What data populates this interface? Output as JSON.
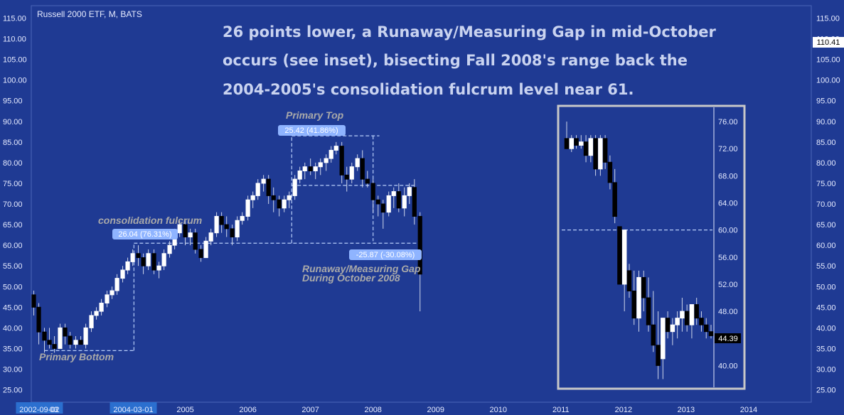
{
  "chart_data": {
    "type": "candlestick",
    "title": "Russell 2000 ETF, M, BATS",
    "headline": [
      "26 points lower, a Runaway/Measuring Gap in mid-October",
      "occurs (see inset), bisecting Fall 2008's range back the",
      "2004-2005's consolidation fulcrum level near 61."
    ],
    "y_ticks": [
      "115.00",
      "110.00",
      "105.00",
      "100.00",
      "95.00",
      "90.00",
      "85.00",
      "80.00",
      "75.00",
      "70.00",
      "65.00",
      "60.00",
      "55.00",
      "50.00",
      "45.00",
      "40.00",
      "35.00",
      "30.00",
      "25.00"
    ],
    "ylim": [
      22,
      118
    ],
    "last_price": "110.41",
    "x_ticks": [
      "2002-09-02",
      "03",
      "2004-03-01",
      "2005",
      "2006",
      "2007",
      "2008",
      "2009",
      "2010",
      "2011",
      "2012",
      "2013",
      "2014"
    ],
    "xlim": [
      2002.54,
      2015.0
    ],
    "candles": [
      {
        "t": 2002.58,
        "o": 48,
        "h": 49,
        "l": 43,
        "c": 45
      },
      {
        "t": 2002.66,
        "o": 45,
        "h": 46,
        "l": 36,
        "c": 39
      },
      {
        "t": 2002.75,
        "o": 39,
        "h": 40,
        "l": 34,
        "c": 37
      },
      {
        "t": 2002.83,
        "o": 37,
        "h": 40,
        "l": 35,
        "c": 36
      },
      {
        "t": 2002.91,
        "o": 36,
        "h": 38,
        "l": 34,
        "c": 35
      },
      {
        "t": 2003.0,
        "o": 35,
        "h": 41,
        "l": 35,
        "c": 40
      },
      {
        "t": 2003.08,
        "o": 40,
        "h": 41,
        "l": 36,
        "c": 38
      },
      {
        "t": 2003.16,
        "o": 38,
        "h": 39,
        "l": 35,
        "c": 36
      },
      {
        "t": 2003.25,
        "o": 36,
        "h": 38,
        "l": 35,
        "c": 37
      },
      {
        "t": 2003.33,
        "o": 37,
        "h": 38,
        "l": 36,
        "c": 36
      },
      {
        "t": 2003.41,
        "o": 36,
        "h": 41,
        "l": 35,
        "c": 40
      },
      {
        "t": 2003.5,
        "o": 40,
        "h": 44,
        "l": 39,
        "c": 43
      },
      {
        "t": 2003.58,
        "o": 43,
        "h": 45,
        "l": 42,
        "c": 44
      },
      {
        "t": 2003.66,
        "o": 44,
        "h": 47,
        "l": 43,
        "c": 46
      },
      {
        "t": 2003.75,
        "o": 46,
        "h": 49,
        "l": 45,
        "c": 48
      },
      {
        "t": 2003.83,
        "o": 48,
        "h": 50,
        "l": 47,
        "c": 49
      },
      {
        "t": 2003.91,
        "o": 49,
        "h": 53,
        "l": 48,
        "c": 52
      },
      {
        "t": 2004.0,
        "o": 52,
        "h": 55,
        "l": 51,
        "c": 54
      },
      {
        "t": 2004.08,
        "o": 54,
        "h": 57,
        "l": 53,
        "c": 56
      },
      {
        "t": 2004.16,
        "o": 56,
        "h": 59,
        "l": 55,
        "c": 58
      },
      {
        "t": 2004.25,
        "o": 58,
        "h": 60,
        "l": 55,
        "c": 57
      },
      {
        "t": 2004.33,
        "o": 57,
        "h": 58,
        "l": 53,
        "c": 55
      },
      {
        "t": 2004.41,
        "o": 55,
        "h": 59,
        "l": 54,
        "c": 58
      },
      {
        "t": 2004.5,
        "o": 58,
        "h": 59,
        "l": 53,
        "c": 54
      },
      {
        "t": 2004.58,
        "o": 54,
        "h": 56,
        "l": 52,
        "c": 55
      },
      {
        "t": 2004.66,
        "o": 55,
        "h": 59,
        "l": 54,
        "c": 58
      },
      {
        "t": 2004.75,
        "o": 58,
        "h": 61,
        "l": 57,
        "c": 60
      },
      {
        "t": 2004.83,
        "o": 60,
        "h": 64,
        "l": 59,
        "c": 63
      },
      {
        "t": 2004.91,
        "o": 63,
        "h": 66,
        "l": 62,
        "c": 65
      },
      {
        "t": 2005.0,
        "o": 65,
        "h": 66,
        "l": 60,
        "c": 62
      },
      {
        "t": 2005.08,
        "o": 62,
        "h": 64,
        "l": 60,
        "c": 63
      },
      {
        "t": 2005.16,
        "o": 63,
        "h": 64,
        "l": 58,
        "c": 59
      },
      {
        "t": 2005.25,
        "o": 59,
        "h": 60,
        "l": 56,
        "c": 57
      },
      {
        "t": 2005.33,
        "o": 57,
        "h": 62,
        "l": 57,
        "c": 61
      },
      {
        "t": 2005.41,
        "o": 61,
        "h": 64,
        "l": 60,
        "c": 63
      },
      {
        "t": 2005.5,
        "o": 63,
        "h": 68,
        "l": 62,
        "c": 67
      },
      {
        "t": 2005.58,
        "o": 67,
        "h": 68,
        "l": 63,
        "c": 65
      },
      {
        "t": 2005.66,
        "o": 65,
        "h": 67,
        "l": 62,
        "c": 64
      },
      {
        "t": 2005.75,
        "o": 64,
        "h": 65,
        "l": 60,
        "c": 62
      },
      {
        "t": 2005.83,
        "o": 62,
        "h": 67,
        "l": 61,
        "c": 66
      },
      {
        "t": 2005.91,
        "o": 66,
        "h": 68,
        "l": 65,
        "c": 67
      },
      {
        "t": 2006.0,
        "o": 67,
        "h": 72,
        "l": 66,
        "c": 71
      },
      {
        "t": 2006.08,
        "o": 71,
        "h": 73,
        "l": 69,
        "c": 72
      },
      {
        "t": 2006.16,
        "o": 72,
        "h": 76,
        "l": 71,
        "c": 75
      },
      {
        "t": 2006.25,
        "o": 75,
        "h": 77,
        "l": 73,
        "c": 76
      },
      {
        "t": 2006.33,
        "o": 76,
        "h": 77,
        "l": 70,
        "c": 72
      },
      {
        "t": 2006.41,
        "o": 72,
        "h": 74,
        "l": 68,
        "c": 71
      },
      {
        "t": 2006.5,
        "o": 71,
        "h": 72,
        "l": 67,
        "c": 69
      },
      {
        "t": 2006.58,
        "o": 69,
        "h": 72,
        "l": 68,
        "c": 71
      },
      {
        "t": 2006.66,
        "o": 71,
        "h": 73,
        "l": 69,
        "c": 72
      },
      {
        "t": 2006.75,
        "o": 72,
        "h": 77,
        "l": 71,
        "c": 76
      },
      {
        "t": 2006.83,
        "o": 76,
        "h": 79,
        "l": 75,
        "c": 78
      },
      {
        "t": 2006.91,
        "o": 78,
        "h": 80,
        "l": 76,
        "c": 79
      },
      {
        "t": 2007.0,
        "o": 79,
        "h": 81,
        "l": 77,
        "c": 78
      },
      {
        "t": 2007.08,
        "o": 78,
        "h": 80,
        "l": 76,
        "c": 79
      },
      {
        "t": 2007.16,
        "o": 79,
        "h": 81,
        "l": 77,
        "c": 80
      },
      {
        "t": 2007.25,
        "o": 80,
        "h": 82,
        "l": 78,
        "c": 81
      },
      {
        "t": 2007.33,
        "o": 81,
        "h": 84,
        "l": 80,
        "c": 83
      },
      {
        "t": 2007.41,
        "o": 83,
        "h": 85,
        "l": 82,
        "c": 84
      },
      {
        "t": 2007.5,
        "o": 84,
        "h": 85,
        "l": 75,
        "c": 77
      },
      {
        "t": 2007.58,
        "o": 77,
        "h": 79,
        "l": 73,
        "c": 76
      },
      {
        "t": 2007.66,
        "o": 76,
        "h": 80,
        "l": 75,
        "c": 79
      },
      {
        "t": 2007.75,
        "o": 79,
        "h": 82,
        "l": 78,
        "c": 81
      },
      {
        "t": 2007.83,
        "o": 81,
        "h": 83,
        "l": 74,
        "c": 76
      },
      {
        "t": 2007.91,
        "o": 76,
        "h": 78,
        "l": 74,
        "c": 75
      },
      {
        "t": 2008.0,
        "o": 75,
        "h": 76,
        "l": 68,
        "c": 71
      },
      {
        "t": 2008.08,
        "o": 71,
        "h": 72,
        "l": 67,
        "c": 70
      },
      {
        "t": 2008.16,
        "o": 70,
        "h": 71,
        "l": 64,
        "c": 68
      },
      {
        "t": 2008.25,
        "o": 68,
        "h": 73,
        "l": 67,
        "c": 72
      },
      {
        "t": 2008.33,
        "o": 72,
        "h": 74,
        "l": 69,
        "c": 73
      },
      {
        "t": 2008.41,
        "o": 73,
        "h": 75,
        "l": 68,
        "c": 69
      },
      {
        "t": 2008.5,
        "o": 69,
        "h": 74,
        "l": 67,
        "c": 72
      },
      {
        "t": 2008.58,
        "o": 72,
        "h": 75,
        "l": 70,
        "c": 74
      },
      {
        "t": 2008.66,
        "o": 74,
        "h": 76,
        "l": 65,
        "c": 67
      },
      {
        "t": 2008.75,
        "o": 67,
        "h": 68,
        "l": 44,
        "c": 53
      }
    ],
    "primary_top_label": "Primary Top",
    "primary_top_box": "25.42 (41.86%)",
    "consolidation_label": "consolidation fulcrum",
    "consolidation_box": "26.04 (76.31%)",
    "decline_box": "-25.87 (-30.08%)",
    "gap_label_line1": "Runaway/Measuring Gap",
    "gap_label_line2": "During October 2008",
    "primary_bottom_label": "Primary Bottom",
    "inset": {
      "y_ticks": [
        "76.00",
        "72.00",
        "68.00",
        "64.00",
        "60.00",
        "56.00",
        "52.00",
        "48.00",
        "44.00",
        "40.00"
      ],
      "ylim": [
        37,
        78
      ],
      "last_price": "44.39",
      "gap_level": 60,
      "candles": [
        {
          "o": 73.5,
          "h": 76,
          "l": 72,
          "c": 72
        },
        {
          "o": 72,
          "h": 74,
          "l": 71.5,
          "c": 73.5
        },
        {
          "o": 73.5,
          "h": 74,
          "l": 72,
          "c": 72.5
        },
        {
          "o": 72.5,
          "h": 74,
          "l": 72,
          "c": 73
        },
        {
          "o": 73,
          "h": 74,
          "l": 70,
          "c": 71
        },
        {
          "o": 71,
          "h": 74,
          "l": 70,
          "c": 73.5
        },
        {
          "o": 73.5,
          "h": 74,
          "l": 68,
          "c": 69
        },
        {
          "o": 69,
          "h": 74,
          "l": 68,
          "c": 73.5
        },
        {
          "o": 73.5,
          "h": 74,
          "l": 69,
          "c": 70
        },
        {
          "o": 70,
          "h": 71,
          "l": 66,
          "c": 67
        },
        {
          "o": 67,
          "h": 69,
          "l": 61,
          "c": 62
        },
        {
          "o": 60.5,
          "h": 60.5,
          "l": 52,
          "c": 52
        },
        {
          "o": 52,
          "h": 60,
          "l": 48,
          "c": 60
        },
        {
          "o": 54,
          "h": 55,
          "l": 50,
          "c": 51
        },
        {
          "o": 51,
          "h": 54,
          "l": 46,
          "c": 47
        },
        {
          "o": 47,
          "h": 54,
          "l": 45,
          "c": 53
        },
        {
          "o": 53,
          "h": 54,
          "l": 48,
          "c": 50
        },
        {
          "o": 50,
          "h": 53,
          "l": 45,
          "c": 46
        },
        {
          "o": 46,
          "h": 51,
          "l": 42,
          "c": 43
        },
        {
          "o": 43,
          "h": 48,
          "l": 38,
          "c": 40
        },
        {
          "o": 41,
          "h": 47,
          "l": 38,
          "c": 47
        },
        {
          "o": 47,
          "h": 48,
          "l": 44,
          "c": 45
        },
        {
          "o": 45,
          "h": 47,
          "l": 43,
          "c": 46
        },
        {
          "o": 46,
          "h": 48,
          "l": 44,
          "c": 47
        },
        {
          "o": 47,
          "h": 50,
          "l": 45,
          "c": 48
        },
        {
          "o": 48,
          "h": 49,
          "l": 45,
          "c": 46
        },
        {
          "o": 46,
          "h": 49,
          "l": 44,
          "c": 49
        },
        {
          "o": 49,
          "h": 50,
          "l": 46,
          "c": 47
        },
        {
          "o": 47,
          "h": 48,
          "l": 45,
          "c": 46
        },
        {
          "o": 46,
          "h": 47,
          "l": 44,
          "c": 45
        },
        {
          "o": 45,
          "h": 46,
          "l": 44,
          "c": 44.4
        }
      ]
    },
    "colors": {
      "background": "#1f3a93",
      "up": "#ffffff",
      "down": "#000000",
      "text": "#e6ebff",
      "headline": "#c9d3f0",
      "annotation": "#a9a9a9",
      "box": "#8fb4ff",
      "dashed": "#b7cdfa"
    }
  }
}
